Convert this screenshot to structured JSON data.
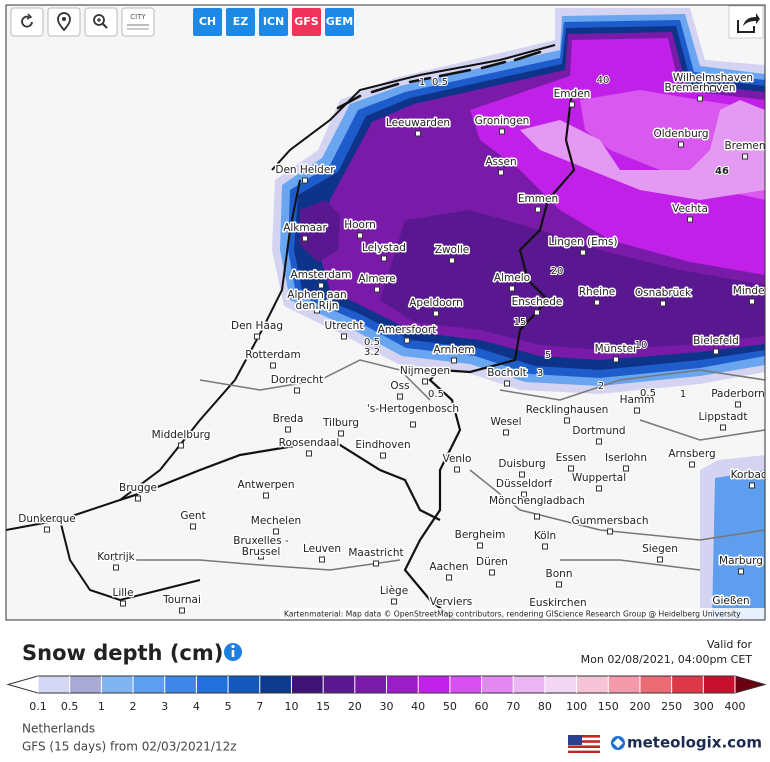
{
  "toolbar": {
    "city_icon": "CITY",
    "model_buttons": [
      {
        "label": "CH",
        "color": "#1e88e5"
      },
      {
        "label": "EZ",
        "color": "#1e88e5"
      },
      {
        "label": "ICN",
        "color": "#1e88e5"
      },
      {
        "label": "GFS",
        "color": "#f0335a"
      },
      {
        "label": "GEM",
        "color": "#1e88e5"
      }
    ]
  },
  "map": {
    "cities": [
      "Bremerhaven",
      "Wilhelmshaven",
      "Emden",
      "Leeuwarden",
      "Groningen",
      "Oldenburg",
      "Bremen",
      "Den Helder",
      "Assen",
      "Emmen",
      "Vechta",
      "Alkmaar",
      "Hoorn",
      "Lelystad",
      "Zwolle",
      "Lingen (Ems)",
      "Amsterdam",
      "Almere",
      "Almelo",
      "Alphen aan den Rijn",
      "Apeldoorn",
      "Enschede",
      "Rheine",
      "Osnabrück",
      "Minden",
      "Den Haag",
      "Utrecht",
      "Amersfoort",
      "Bielefeld",
      "Rotterdam",
      "Arnhem",
      "Münster",
      "Nijmegen",
      "Bocholt",
      "Dordrecht",
      "Oss",
      "Paderborn",
      "Hamm",
      "Breda",
      "Tilburg",
      "'s-Hertogenbosch",
      "Recklinghausen",
      "Lippstadt",
      "Wesel",
      "Middelburg",
      "Roosendaal",
      "Eindhoven",
      "Dortmund",
      "Venlo",
      "Essen",
      "Iserlohn",
      "Arnsberg",
      "Duisburg",
      "Antwerpen",
      "Brugge",
      "Düsseldorf",
      "Wuppertal",
      "Korbach",
      "Mönchengladbach",
      "Gent",
      "Dunkerque",
      "Mechelen",
      "Gummersbach",
      "Bergheim",
      "Köln",
      "Bruxelles - Brussel",
      "Leuven",
      "Maastricht",
      "Siegen",
      "Kortrijk",
      "Düren",
      "Aachen",
      "Marburg",
      "Bonn",
      "Lille",
      "Tournai",
      "Liège",
      "Verviers",
      "Euskirchen",
      "Gießen"
    ],
    "contour_labels": [
      "46",
      "40",
      "20",
      "15",
      "10",
      "5",
      "3",
      "2",
      "1",
      "0.5",
      "0.5",
      "3.2",
      "0.5",
      "1",
      "0.5"
    ],
    "attribution": "Kartenmaterial: Map data © OpenStreetMap contributors, rendering GIScience Research Group @ Heidelberg University"
  },
  "legend": {
    "title": "Snow depth (cm)",
    "valid_label": "Valid for",
    "valid_time": "Mon 02/08/2021, 04:00pm CET",
    "ticks": [
      "0.1",
      "0.5",
      "1",
      "2",
      "3",
      "4",
      "5",
      "7",
      "10",
      "15",
      "20",
      "30",
      "40",
      "50",
      "60",
      "70",
      "80",
      "100",
      "150",
      "200",
      "250",
      "300",
      "400"
    ],
    "colors": [
      "#d6d6f5",
      "#a9a9d6",
      "#80b4f2",
      "#5c9ff0",
      "#3e86ea",
      "#2170dc",
      "#1457bd",
      "#0b3a8e",
      "#3d1476",
      "#5a1890",
      "#7a1aa8",
      "#9c1cc8",
      "#c020e8",
      "#d850f0",
      "#e388f2",
      "#ebb4f2",
      "#f3d6f3",
      "#f6c4d6",
      "#f49aab",
      "#ec6a74",
      "#dc3848",
      "#c8102e"
    ],
    "under_color": "#ffffff",
    "over_color": "#6a0010"
  },
  "footer": {
    "region": "Netherlands",
    "model_run": "GFS (15 days) from 02/03/2021/12z",
    "brand": "meteologix.com"
  }
}
